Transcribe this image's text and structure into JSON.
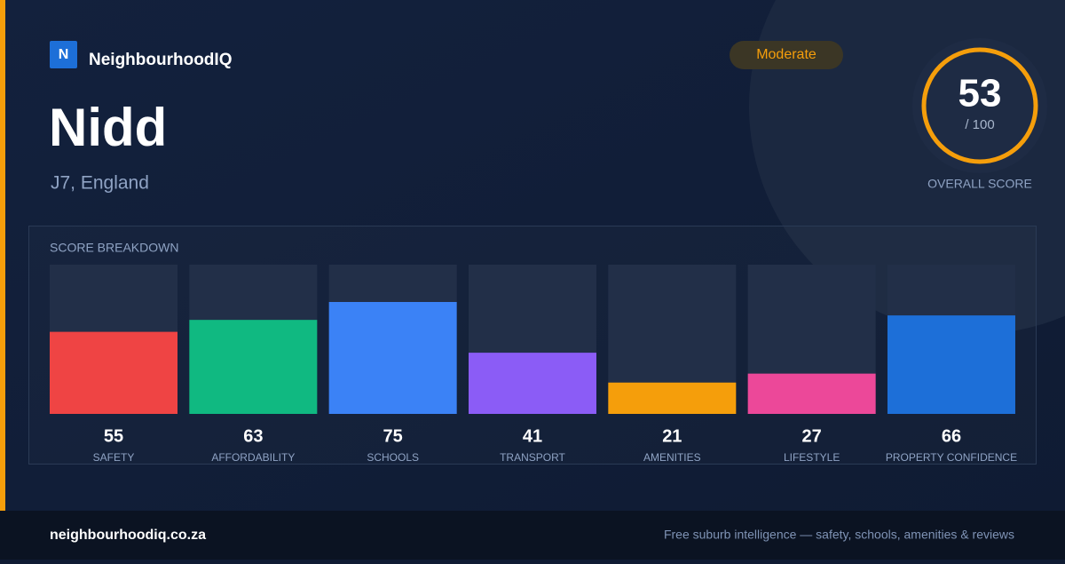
{
  "brand": "NeighbourhoodIQ",
  "brand_initial": "N",
  "title": "Nidd",
  "location": "J7, England",
  "badge": "Moderate",
  "score": 53,
  "score_suffix": "/ 100",
  "score_label": "OVERALL SCORE",
  "chart_data": {
    "type": "bar",
    "title": "SCORE BREAKDOWN",
    "categories": [
      "SAFETY",
      "AFFORDABILITY",
      "SCHOOLS",
      "TRANSPORT",
      "AMENITIES",
      "LIFESTYLE",
      "PROPERTY CONFIDENCE"
    ],
    "values": [
      55,
      63,
      75,
      41,
      21,
      27,
      66
    ],
    "colors": [
      "#ef4444",
      "#10b981",
      "#3b82f6",
      "#8b5cf6",
      "#f59e0b",
      "#ec4899",
      "#1d6fd8"
    ],
    "ylim": [
      0,
      100
    ]
  },
  "footer": {
    "url": "neighbourhoodiq.co.za",
    "tagline": "Free suburb intelligence — safety, schools, amenities & reviews"
  }
}
